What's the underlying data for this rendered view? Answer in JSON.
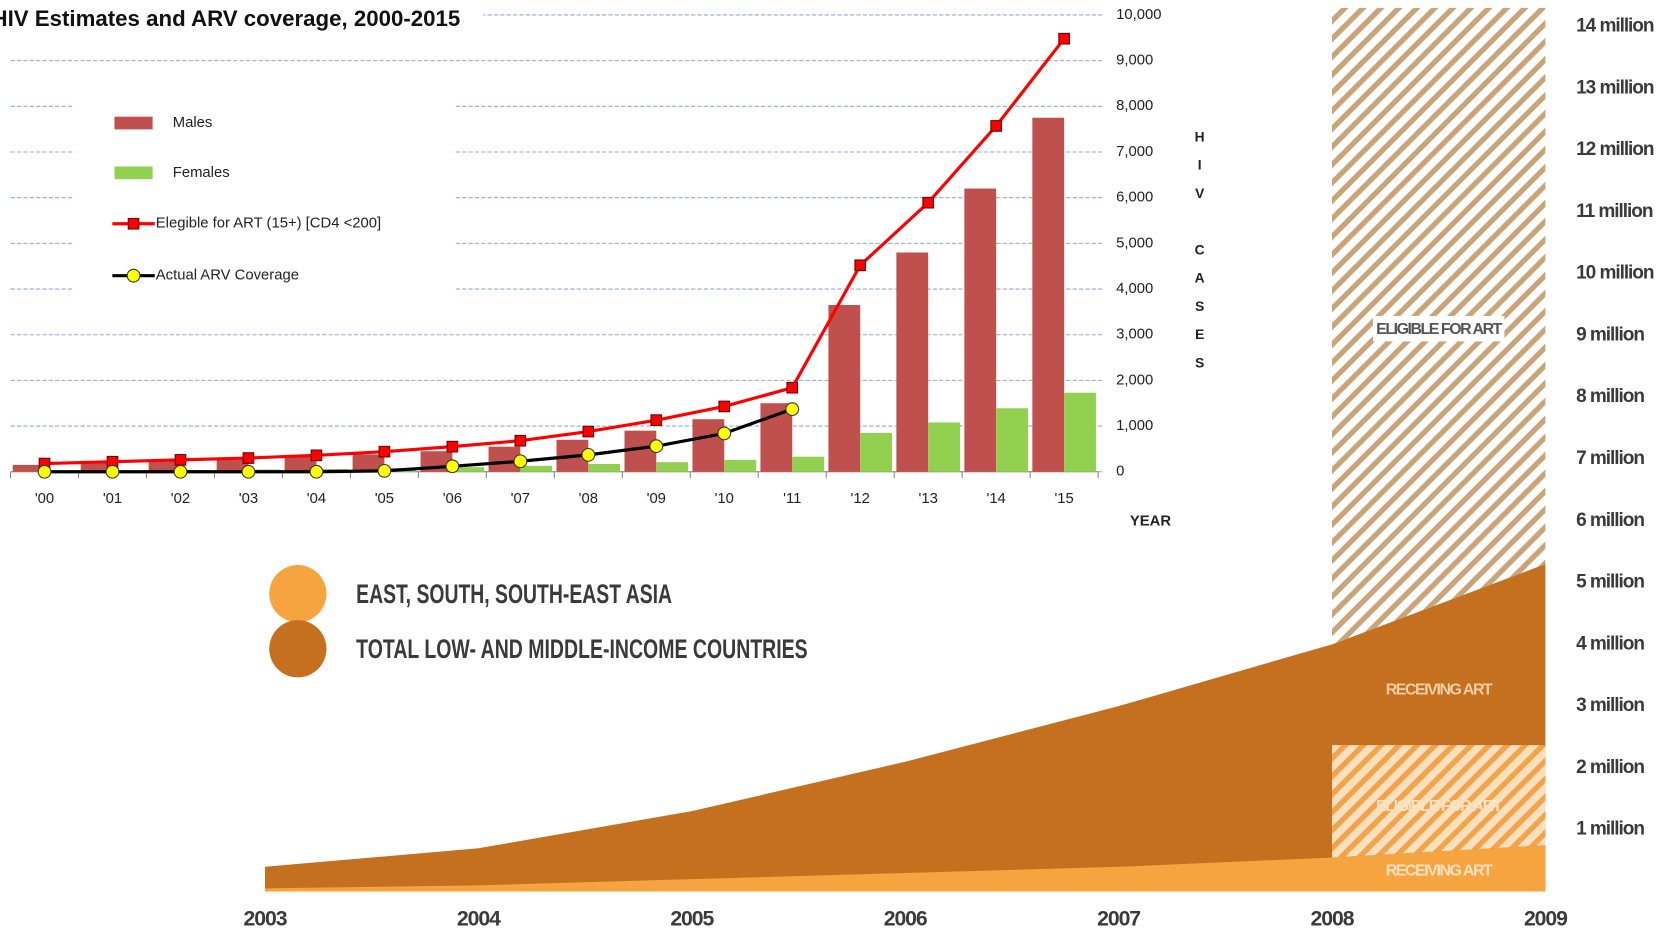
{
  "chart_data": [
    {
      "type": "bar",
      "title": "HIV Estimates and ARV coverage, 2000-2015",
      "categories": [
        "'00",
        "'01",
        "'02",
        "'03",
        "'04",
        "'05",
        "'06",
        "'07",
        "'08",
        "'09",
        "'10",
        "'11",
        "'12",
        "'13",
        "'14",
        "'15"
      ],
      "series": [
        {
          "name": "Males",
          "type": "bar",
          "color": "#c0504d",
          "values": [
            150,
            200,
            250,
            300,
            350,
            380,
            450,
            550,
            700,
            900,
            1150,
            1500,
            3650,
            4800,
            6200,
            7750
          ]
        },
        {
          "name": "Females",
          "type": "bar",
          "color": "#92d050",
          "values": [
            20,
            30,
            40,
            50,
            60,
            80,
            100,
            130,
            170,
            210,
            260,
            330,
            850,
            1080,
            1390,
            1730
          ]
        },
        {
          "name": "Elegible for ART (15+) [CD4 <200]",
          "type": "line",
          "color": "#ff0000",
          "values": [
            180,
            220,
            260,
            300,
            360,
            440,
            550,
            680,
            880,
            1130,
            1430,
            1840,
            4520,
            5890,
            7570,
            9480
          ]
        },
        {
          "name": "Actual ARV Coverage",
          "type": "line",
          "color": "#000000",
          "values": [
            0,
            0,
            0,
            0,
            0,
            20,
            120,
            230,
            370,
            560,
            840,
            1370,
            null,
            null,
            null,
            null
          ]
        }
      ],
      "ylim": [
        0,
        10000
      ],
      "yticks": [
        0,
        {
          "value": 1000,
          "label": "1,000"
        },
        {
          "value": 2000,
          "label": "2,000"
        },
        {
          "value": 3000,
          "label": "3,000"
        },
        {
          "value": 4000,
          "label": "4,000"
        },
        {
          "value": 5000,
          "label": "5,000"
        },
        {
          "value": 6000,
          "label": "6,000"
        },
        {
          "value": 7000,
          "label": "7,000"
        },
        {
          "value": 8000,
          "label": "8,000"
        },
        {
          "value": 9000,
          "label": "9,000"
        },
        {
          "value": 10000,
          "label": "10,000"
        }
      ],
      "ylabel": "HIV CASES",
      "xlabel": "YEAR",
      "grid": true
    },
    {
      "type": "area",
      "x": [
        2003,
        2004,
        2005,
        2006,
        2007,
        2008,
        2009
      ],
      "xticks": [
        2003,
        2004,
        2005,
        2006,
        2007,
        2008,
        2009
      ],
      "series": [
        {
          "name": "EAST, SOUTH, SOUTH-EAST ASIA",
          "color": "#f6a440",
          "values": [
            0.05,
            0.1,
            0.2,
            0.3,
            0.4,
            0.55,
            0.75
          ],
          "eligible": {
            "label": "ELIGIBLE FOR ART",
            "value": 2.37
          },
          "receiving_label": "RECEIVING ART"
        },
        {
          "name": "TOTAL LOW- AND MIDDLE-INCOME COUNTRIES",
          "color": "#c4701f",
          "values": [
            0.4,
            0.7,
            1.3,
            2.1,
            3.0,
            4.0,
            5.3
          ],
          "eligible": {
            "label": "ELIGIBLE FOR ART",
            "value": 14.3
          },
          "receiving_label": "RECEIVING ART"
        }
      ],
      "ylim": [
        0,
        14.3
      ],
      "yticks": [
        {
          "value": 1,
          "label": "1 million"
        },
        {
          "value": 2,
          "label": "2 million"
        },
        {
          "value": 3,
          "label": "3 million"
        },
        {
          "value": 4,
          "label": "4 million"
        },
        {
          "value": 5,
          "label": "5 million"
        },
        {
          "value": 6,
          "label": "6 million"
        },
        {
          "value": 7,
          "label": "7 million"
        },
        {
          "value": 8,
          "label": "8 million"
        },
        {
          "value": 9,
          "label": "9 million"
        },
        {
          "value": 10,
          "label": "10 million"
        },
        {
          "value": 11,
          "label": "11 million"
        },
        {
          "value": 12,
          "label": "12 million"
        },
        {
          "value": 13,
          "label": "13 million"
        },
        {
          "value": 14,
          "label": "14 million"
        }
      ]
    }
  ]
}
